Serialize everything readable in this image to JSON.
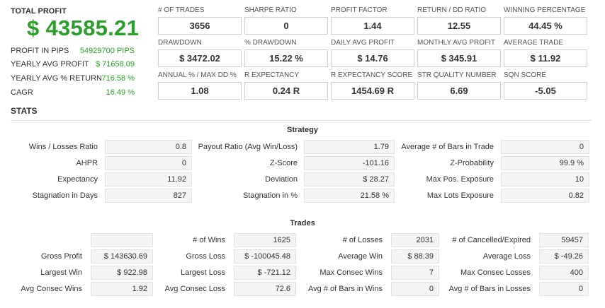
{
  "summary": {
    "total_profit_label": "TOTAL PROFIT",
    "total_profit_value": "$ 43585.21",
    "rows": [
      {
        "label": "PROFIT IN PIPS",
        "value": "54929700 PIPS"
      },
      {
        "label": "YEARLY AVG PROFIT",
        "value": "$ 71658.09"
      },
      {
        "label": "YEARLY AVG % RETURN",
        "value": "716.58 %"
      },
      {
        "label": "CAGR",
        "value": "16.49 %"
      }
    ]
  },
  "metrics": [
    {
      "label": "# OF TRADES",
      "value": "3656"
    },
    {
      "label": "SHARPE RATIO",
      "value": "0"
    },
    {
      "label": "PROFIT FACTOR",
      "value": "1.44"
    },
    {
      "label": "RETURN / DD RATIO",
      "value": "12.55"
    },
    {
      "label": "WINNING PERCENTAGE",
      "value": "44.45 %"
    },
    {
      "label": "DRAWDOWN",
      "value": "$ 3472.02"
    },
    {
      "label": "% DRAWDOWN",
      "value": "15.22 %"
    },
    {
      "label": "DAILY AVG PROFIT",
      "value": "$ 14.76"
    },
    {
      "label": "MONTHLY AVG PROFIT",
      "value": "$ 345.91"
    },
    {
      "label": "AVERAGE TRADE",
      "value": "$ 11.92"
    },
    {
      "label": "ANNUAL % / MAX DD %",
      "value": "1.08"
    },
    {
      "label": "R EXPECTANCY",
      "value": "0.24 R"
    },
    {
      "label": "R EXPECTANCY SCORE",
      "value": "1454.69 R"
    },
    {
      "label": "STR QUALITY NUMBER",
      "value": "6.69"
    },
    {
      "label": "SQN SCORE",
      "value": "-5.05"
    }
  ],
  "stats": {
    "title": "STATS",
    "strategy": {
      "title": "Strategy",
      "rows": [
        [
          {
            "label": "Wins / Losses Ratio",
            "value": "0.8"
          },
          {
            "label": "Payout Ratio (Avg Win/Loss)",
            "value": "1.79"
          },
          {
            "label": "Average # of Bars in Trade",
            "value": "0"
          }
        ],
        [
          {
            "label": "AHPR",
            "value": "0"
          },
          {
            "label": "Z-Score",
            "value": "-101.16"
          },
          {
            "label": "Z-Probability",
            "value": "99.9 %"
          }
        ],
        [
          {
            "label": "Expectancy",
            "value": "11.92"
          },
          {
            "label": "Deviation",
            "value": "$ 28.27"
          },
          {
            "label": "Max Pos. Exposure",
            "value": "10"
          }
        ],
        [
          {
            "label": "Stagnation in Days",
            "value": "827"
          },
          {
            "label": "Stagnation in %",
            "value": "21.58 %"
          },
          {
            "label": "Max Lots Exposure",
            "value": "0.82"
          }
        ]
      ]
    },
    "trades": {
      "title": "Trades",
      "rows": [
        [
          {
            "label": "",
            "value": ""
          },
          {
            "label": "# of Wins",
            "value": "1625"
          },
          {
            "label": "# of Losses",
            "value": "2031"
          },
          {
            "label": "# of Cancelled/Expired",
            "value": "59457"
          }
        ],
        [
          {
            "label": "Gross Profit",
            "value": "$ 143630.69"
          },
          {
            "label": "Gross Loss",
            "value": "$ -100045.48"
          },
          {
            "label": "Average Win",
            "value": "$ 88.39"
          },
          {
            "label": "Average Loss",
            "value": "$ -49.26"
          }
        ],
        [
          {
            "label": "Largest Win",
            "value": "$ 922.98"
          },
          {
            "label": "Largest Loss",
            "value": "$ -721.12"
          },
          {
            "label": "Max Consec Wins",
            "value": "7"
          },
          {
            "label": "Max Consec Losses",
            "value": "400"
          }
        ],
        [
          {
            "label": "Avg Consec Wins",
            "value": "1.92"
          },
          {
            "label": "Avg Consec Loss",
            "value": "72.6"
          },
          {
            "label": "Avg # of Bars in Wins",
            "value": "0"
          },
          {
            "label": "Avg # of Bars in Losses",
            "value": "0"
          }
        ]
      ]
    }
  }
}
